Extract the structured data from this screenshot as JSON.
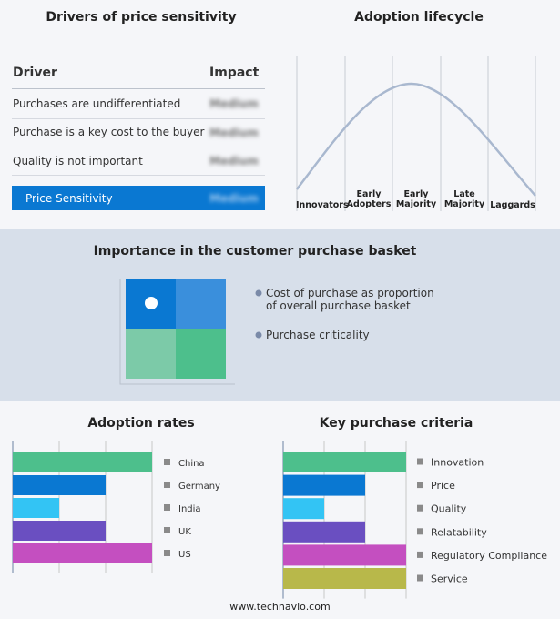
{
  "drivers": {
    "title": "Drivers of price sensitivity",
    "header": [
      "Driver",
      "Impact"
    ],
    "rows": [
      [
        "Purchases are undifferentiated",
        "Medium"
      ],
      [
        "Purchase is a key cost to the buyer",
        "Medium"
      ],
      [
        "Quality is not important",
        "Medium"
      ]
    ],
    "summary": [
      "Price Sensitivity",
      "Medium"
    ]
  },
  "lifecycle": {
    "title": "Adoption lifecycle",
    "stages": [
      "Innovators",
      "Early Adopters",
      "Early Majority",
      "Late Majority",
      "Laggards"
    ]
  },
  "basket": {
    "title": "Importance in the customer purchase basket",
    "legend": [
      "Cost of purchase as proportion of overall purchase basket",
      "Purchase criticality"
    ]
  },
  "chart_data": [
    {
      "type": "bar",
      "orientation": "horizontal",
      "title": "Adoption rates",
      "categories": [
        "China",
        "Germany",
        "India",
        "UK",
        "US"
      ],
      "values": [
        3,
        2,
        1,
        2,
        3
      ],
      "colors": [
        "#4dbf8c",
        "#0a78d2",
        "#33c4f4",
        "#6a4fc1",
        "#c44fc0"
      ],
      "xlim": [
        0,
        3
      ],
      "xticks": [
        0,
        1,
        2,
        3
      ],
      "grid": true
    },
    {
      "type": "bar",
      "orientation": "horizontal",
      "title": "Key purchase criteria",
      "categories": [
        "Innovation",
        "Price",
        "Quality",
        "Relatability",
        "Regulatory Compliance",
        "Service"
      ],
      "values": [
        3,
        2,
        1,
        2,
        3,
        3
      ],
      "colors": [
        "#4dbf8c",
        "#0a78d2",
        "#33c4f4",
        "#6a4fc1",
        "#c44fc0",
        "#b8b84a"
      ],
      "xlim": [
        0,
        3
      ],
      "xticks": [
        0,
        1,
        2,
        3
      ],
      "grid": true
    }
  ],
  "footer": "www.technavio.com"
}
